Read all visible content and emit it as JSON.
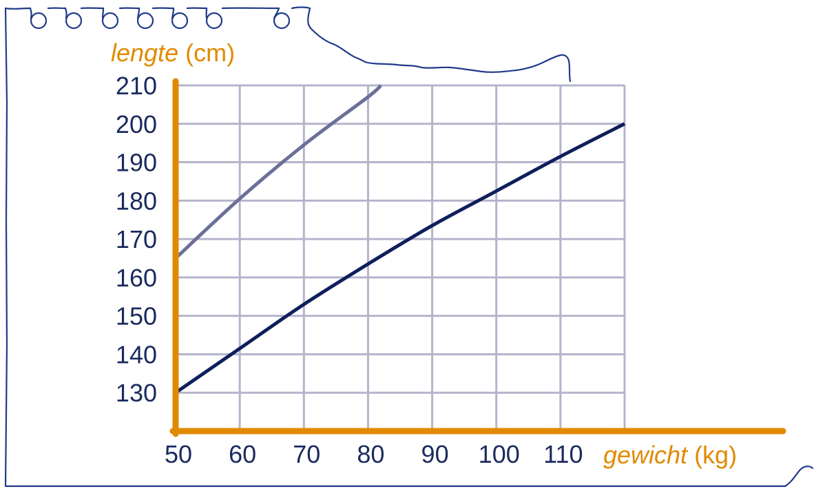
{
  "chart_data": {
    "type": "line",
    "ylabel": {
      "italic": "lengte",
      "unit": "(cm)"
    },
    "xlabel": {
      "italic": "gewicht",
      "unit": "(kg)"
    },
    "xlim": [
      50,
      120
    ],
    "ylim": [
      120,
      210
    ],
    "x_ticks": [
      50,
      60,
      70,
      80,
      90,
      100,
      110
    ],
    "y_ticks": [
      130,
      140,
      150,
      160,
      170,
      180,
      190,
      200,
      210
    ],
    "grid": true,
    "series": [
      {
        "x": [
          50,
          60,
          70,
          80,
          82
        ],
        "y": [
          165,
          180.5,
          194.5,
          207,
          210
        ],
        "color": "#6b7099"
      },
      {
        "x": [
          50,
          60,
          70,
          80,
          90,
          100,
          110,
          120
        ],
        "y": [
          130,
          141.5,
          153,
          163.5,
          173.5,
          182.5,
          191.5,
          200
        ],
        "color": "#0e1f5b"
      }
    ],
    "colors": {
      "axis": "#e08a00",
      "grid": "#b4b4cc",
      "tick_text": "#1a2a5e",
      "paper_outline": "#1f3a8a"
    }
  }
}
